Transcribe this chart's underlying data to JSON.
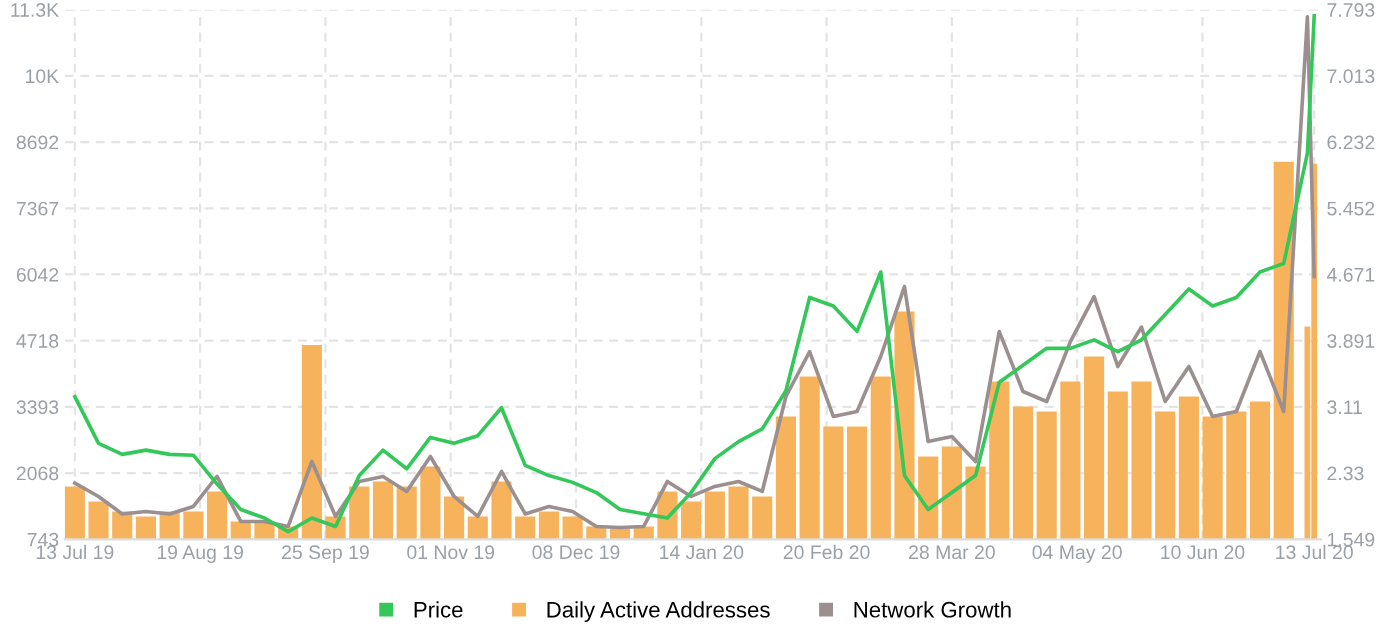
{
  "chart_data": {
    "type": "line",
    "x": [
      "2019-07-13",
      "2019-07-20",
      "2019-07-27",
      "2019-08-03",
      "2019-08-10",
      "2019-08-17",
      "2019-08-24",
      "2019-08-31",
      "2019-09-07",
      "2019-09-14",
      "2019-09-21",
      "2019-09-28",
      "2019-10-05",
      "2019-10-12",
      "2019-10-19",
      "2019-10-26",
      "2019-11-02",
      "2019-11-09",
      "2019-11-16",
      "2019-11-23",
      "2019-11-30",
      "2019-12-07",
      "2019-12-14",
      "2019-12-21",
      "2019-12-28",
      "2020-01-04",
      "2020-01-11",
      "2020-01-18",
      "2020-01-25",
      "2020-02-01",
      "2020-02-08",
      "2020-02-15",
      "2020-02-22",
      "2020-02-29",
      "2020-03-07",
      "2020-03-14",
      "2020-03-21",
      "2020-03-28",
      "2020-04-04",
      "2020-04-11",
      "2020-04-18",
      "2020-04-25",
      "2020-05-02",
      "2020-05-09",
      "2020-05-16",
      "2020-05-23",
      "2020-05-30",
      "2020-06-06",
      "2020-06-13",
      "2020-06-20",
      "2020-06-27",
      "2020-07-04",
      "2020-07-11",
      "2020-07-13"
    ],
    "series": [
      {
        "name": "Price",
        "type": "line",
        "axis": "y2",
        "color": "#34c759",
        "values": [
          3.23,
          2.68,
          2.55,
          2.6,
          2.55,
          2.54,
          2.2,
          1.9,
          1.8,
          1.64,
          1.8,
          1.7,
          2.3,
          2.6,
          2.38,
          2.75,
          2.68,
          2.77,
          3.1,
          2.42,
          2.3,
          2.22,
          2.1,
          1.9,
          1.85,
          1.8,
          2.1,
          2.5,
          2.7,
          2.85,
          3.3,
          4.4,
          4.3,
          4.0,
          4.7,
          2.3,
          1.9,
          2.1,
          2.3,
          3.4,
          3.6,
          3.8,
          3.8,
          3.9,
          3.76,
          3.9,
          4.2,
          4.5,
          4.3,
          4.4,
          4.7,
          4.8,
          6.1,
          7.72
        ]
      },
      {
        "name": "Daily Active Addresses",
        "type": "bar",
        "color": "#f7b35b",
        "values": [
          1800,
          1500,
          1300,
          1200,
          1300,
          1300,
          1700,
          1100,
          1100,
          1000,
          4630,
          1200,
          1800,
          1900,
          1800,
          2200,
          1600,
          1200,
          1900,
          1200,
          1300,
          1200,
          1000,
          950,
          1000,
          1700,
          1500,
          1700,
          1800,
          1600,
          3200,
          4000,
          3000,
          3000,
          4000,
          5300,
          2400,
          2600,
          2200,
          3900,
          3400,
          3300,
          3900,
          4400,
          3700,
          3900,
          3300,
          3600,
          3200,
          3300,
          3500,
          8300,
          5000,
          8260
        ]
      },
      {
        "name": "Network Growth",
        "color": "#9b8f8f",
        "values": [
          1870,
          1600,
          1250,
          1300,
          1250,
          1400,
          2000,
          1100,
          1100,
          1000,
          2300,
          1200,
          1900,
          2000,
          1700,
          2400,
          1600,
          1200,
          2100,
          1250,
          1400,
          1300,
          1000,
          980,
          1000,
          1900,
          1600,
          1800,
          1900,
          1700,
          3600,
          4500,
          3200,
          3300,
          4400,
          5800,
          2700,
          2800,
          2300,
          4900,
          3700,
          3500,
          4700,
          5600,
          4200,
          4990,
          3500,
          4200,
          3200,
          3300,
          4500,
          3300,
          11200,
          6000
        ]
      }
    ],
    "xlim": [
      "2019-07-10",
      "2020-07-15"
    ],
    "xticks": [
      {
        "value": "2019-07-13",
        "label": "13 Jul 19"
      },
      {
        "value": "2019-08-19",
        "label": "19 Aug 19"
      },
      {
        "value": "2019-09-25",
        "label": "25 Sep 19"
      },
      {
        "value": "2019-11-01",
        "label": "01 Nov 19"
      },
      {
        "value": "2019-12-08",
        "label": "08 Dec 19"
      },
      {
        "value": "2020-01-14",
        "label": "14 Jan 20"
      },
      {
        "value": "2020-02-20",
        "label": "20 Feb 20"
      },
      {
        "value": "2020-03-28",
        "label": "28 Mar 20"
      },
      {
        "value": "2020-05-04",
        "label": "04 May 20"
      },
      {
        "value": "2020-06-10",
        "label": "10 Jun 20"
      },
      {
        "value": "2020-07-13",
        "label": "13 Jul 20"
      }
    ],
    "ylim": [
      743,
      11342
    ],
    "yticks": [
      743,
      2068,
      3393,
      4718,
      6042,
      7367,
      8692,
      {
        "value": 10017,
        "label": "10K"
      },
      {
        "value": 11342,
        "label": "11.3K"
      }
    ],
    "y2lim": [
      1.549,
      7.793
    ],
    "y2ticks": [
      1.549,
      {
        "value": 2.3295,
        "label": "2.33"
      },
      3.11,
      {
        "value": 3.8905,
        "label": "3.891"
      },
      4.671,
      {
        "value": 5.4515,
        "label": "5.452"
      },
      6.232,
      {
        "value": 7.0125,
        "label": "7.013"
      },
      7.793
    ],
    "grid": true,
    "legend": "bottom"
  }
}
